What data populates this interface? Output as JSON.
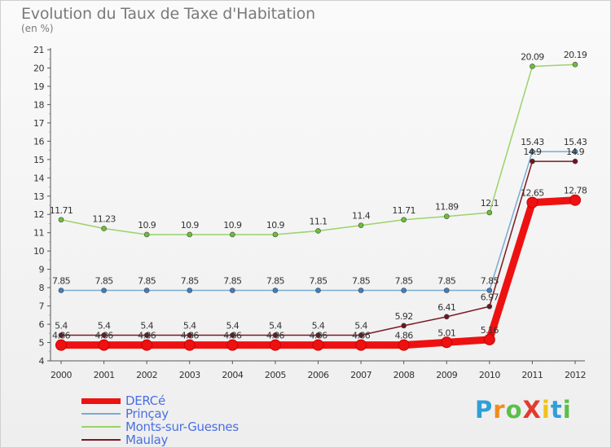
{
  "header": {
    "title": "Evolution du Taux de Taxe d'Habitation",
    "subtitle": "(en %)"
  },
  "logo": {
    "text": "ProXiti",
    "letters": [
      "P",
      "r",
      "o",
      "X",
      "i",
      "t",
      "i"
    ],
    "colors": [
      "#2f9fd8",
      "#f28c1a",
      "#5bbf4a",
      "#e23b2e",
      "#f2c21a",
      "#2f9fd8",
      "#5bbf4a"
    ]
  },
  "chart_data": {
    "type": "line",
    "title": "Evolution du Taux de Taxe d'Habitation",
    "subtitle": "(en %)",
    "x": [
      "2000",
      "2001",
      "2002",
      "2003",
      "2004",
      "2005",
      "2006",
      "2007",
      "2008",
      "2009",
      "2010",
      "2011",
      "2012"
    ],
    "yticks": [
      "4",
      "5",
      "6",
      "7",
      "8",
      "9",
      "10",
      "11",
      "12",
      "13",
      "14",
      "15",
      "16",
      "17",
      "18",
      "19",
      "20",
      "21"
    ],
    "ylim": [
      4,
      21
    ],
    "grid": false,
    "legend_position": "bottom-left",
    "series": [
      {
        "name": "DERCé",
        "color": "#ee1111",
        "marker_color": "#ee1111",
        "values": [
          4.86,
          4.86,
          4.86,
          4.86,
          4.86,
          4.86,
          4.86,
          4.86,
          4.86,
          5.01,
          5.16,
          12.65,
          12.78
        ],
        "labels": [
          "4.86",
          "4.86",
          "4.86",
          "4.86",
          "4.86",
          "4.86",
          "4.86",
          "4.86",
          "4.86",
          "5.01",
          "5.16",
          "12.65",
          "12.78"
        ]
      },
      {
        "name": "Prinçay",
        "color": "#7aaad6",
        "marker_color": "#3f7fbf",
        "values": [
          7.85,
          7.85,
          7.85,
          7.85,
          7.85,
          7.85,
          7.85,
          7.85,
          7.85,
          7.85,
          7.85,
          15.43,
          15.43
        ],
        "labels": [
          "7.85",
          "7.85",
          "7.85",
          "7.85",
          "7.85",
          "7.85",
          "7.85",
          "7.85",
          "7.85",
          "7.85",
          "7.85",
          "15.43",
          "15.43"
        ]
      },
      {
        "name": "Monts-sur-Guesnes",
        "color": "#9ad36a",
        "marker_color": "#6cbf3a",
        "values": [
          11.71,
          11.23,
          10.9,
          10.9,
          10.9,
          10.9,
          11.1,
          11.4,
          11.71,
          11.89,
          12.1,
          20.09,
          20.19
        ],
        "labels": [
          "11.71",
          "11.23",
          "10.9",
          "10.9",
          "10.9",
          "10.9",
          "11.1",
          "11.4",
          "11.71",
          "11.89",
          "12.1",
          "20.09",
          "20.19"
        ]
      },
      {
        "name": "Maulay",
        "color": "#7a1a22",
        "marker_color": "#6e1520",
        "values": [
          5.4,
          5.4,
          5.4,
          5.4,
          5.4,
          5.4,
          5.4,
          5.4,
          5.92,
          6.41,
          6.97,
          14.9,
          14.9
        ],
        "labels": [
          "5.4",
          "5.4",
          "5.4",
          "5.4",
          "5.4",
          "5.4",
          "5.4",
          "5.4",
          "5.92",
          "6.41",
          "6.97",
          "14.9",
          "14.9"
        ]
      }
    ]
  }
}
